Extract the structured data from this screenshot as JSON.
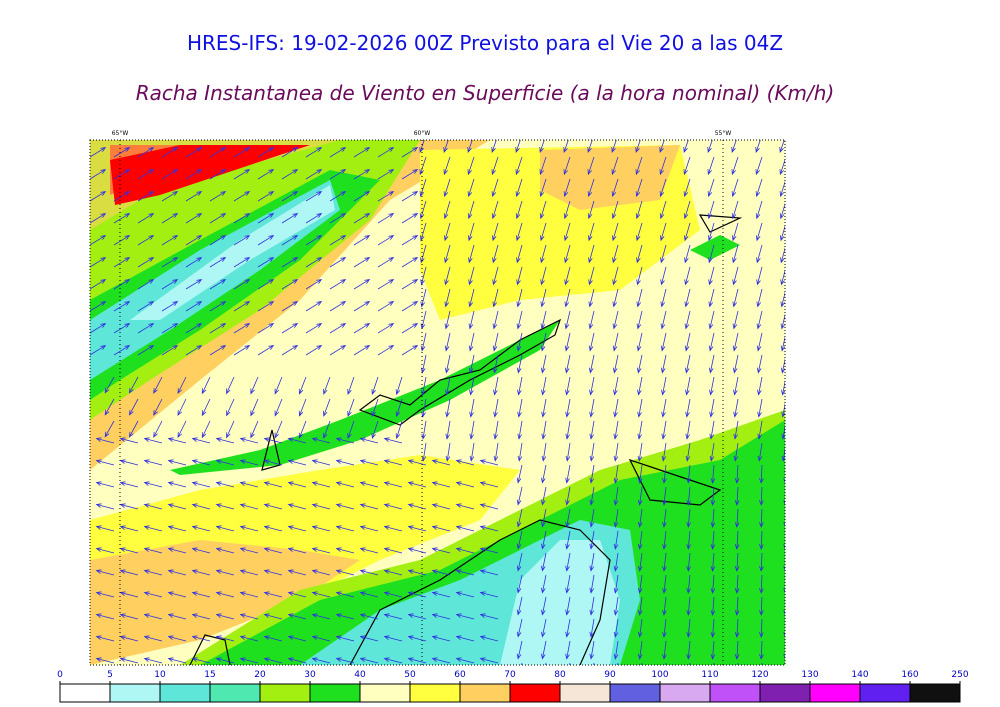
{
  "title": "HRES-IFS: 19-02-2026 00Z Previsto para el Vie 20 a las 04Z",
  "subtitle": "Racha Instantanea de Viento en Superficie (a la hora nominal) (Km/h)",
  "longitudes": [
    "65°W",
    "60°W",
    "55°W"
  ],
  "colorbar": {
    "ticks": [
      0,
      5,
      10,
      15,
      20,
      30,
      40,
      50,
      60,
      70,
      80,
      90,
      100,
      110,
      120,
      130,
      140,
      160,
      250
    ],
    "colors": [
      "#ffffff",
      "#aef7f4",
      "#5ee6d8",
      "#4ee8b0",
      "#a4ef12",
      "#1fe01f",
      "#ffffc0",
      "#ffff40",
      "#ffd060",
      "#ff0000",
      "#f5e6d8",
      "#6060e0",
      "#d8a8f0",
      "#c050f8",
      "#8020b0",
      "#ff00ff",
      "#6020f0",
      "#101010"
    ]
  }
}
